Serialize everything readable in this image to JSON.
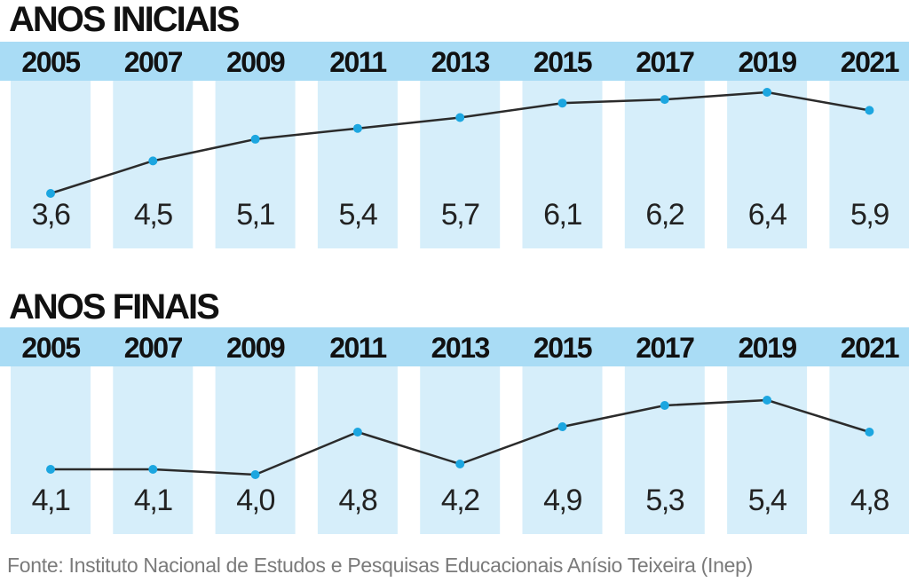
{
  "colors": {
    "column_fill": "#d6eefa",
    "header_band": "#a9dcf5",
    "line": "#2b2b2b",
    "marker": "#1ca6e0",
    "title_text": "#111111",
    "source_text": "#7a7a7a"
  },
  "chart_data": [
    {
      "type": "line",
      "title": "ANOS INICIAIS",
      "categories": [
        "2005",
        "2007",
        "2009",
        "2011",
        "2013",
        "2015",
        "2017",
        "2019",
        "2021"
      ],
      "value_labels": [
        "3,6",
        "4,5",
        "5,1",
        "5,4",
        "5,7",
        "6,1",
        "6,2",
        "6,4",
        "5,9"
      ],
      "series": [
        {
          "values": [
            3.6,
            4.5,
            5.1,
            5.4,
            5.7,
            6.1,
            6.2,
            6.4,
            5.9
          ]
        }
      ],
      "grid": false,
      "legend": "none"
    },
    {
      "type": "line",
      "title": "ANOS FINAIS",
      "categories": [
        "2005",
        "2007",
        "2009",
        "2011",
        "2013",
        "2015",
        "2017",
        "2019",
        "2021"
      ],
      "value_labels": [
        "4,1",
        "4,1",
        "4,0",
        "4,8",
        "4,2",
        "4,9",
        "5,3",
        "5,4",
        "4,8"
      ],
      "series": [
        {
          "values": [
            4.1,
            4.1,
            4.0,
            4.8,
            4.2,
            4.9,
            5.3,
            5.4,
            4.8
          ]
        }
      ],
      "grid": false,
      "legend": "none"
    }
  ],
  "source": "Fonte: Instituto Nacional de Estudos e Pesquisas Educacionais Anísio Teixeira (Inep)"
}
